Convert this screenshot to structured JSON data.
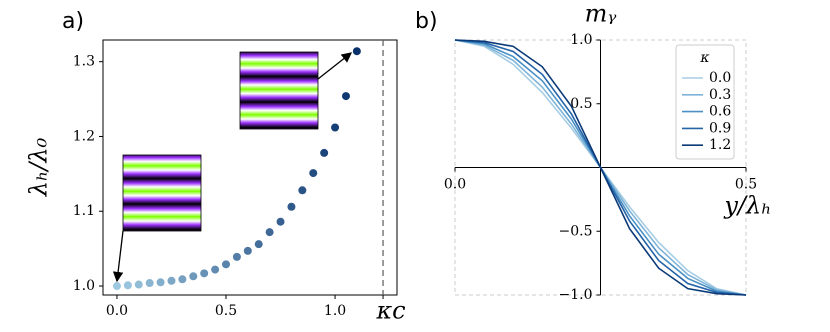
{
  "chart_data": [
    {
      "type": "scatter",
      "panel_label": "a)",
      "ylabel": "λₕ/λ₀",
      "x": [
        0,
        0.05,
        0.1,
        0.15,
        0.2,
        0.25,
        0.3,
        0.35,
        0.4,
        0.45,
        0.5,
        0.55,
        0.6,
        0.65,
        0.7,
        0.75,
        0.8,
        0.85,
        0.9,
        0.95,
        1.0,
        1.05,
        1.1
      ],
      "values": [
        1.0,
        1.001,
        1.002,
        1.004,
        1.005,
        1.007,
        1.009,
        1.013,
        1.017,
        1.022,
        1.029,
        1.039,
        1.047,
        1.056,
        1.072,
        1.086,
        1.106,
        1.128,
        1.151,
        1.178,
        1.212,
        1.254,
        1.314
      ],
      "color_range": [
        "#9ecae1",
        "#08306b"
      ],
      "xlim": [
        -0.064,
        1.284
      ],
      "ylim": [
        0.988,
        1.329
      ],
      "xticks": [
        {
          "value": 0,
          "label": "0.0"
        },
        0.5,
        {
          "value": 1,
          "label": "1.0"
        }
      ],
      "yticks": [
        {
          "value": 1,
          "label": "1.0"
        },
        1.1,
        1.2,
        1.3
      ],
      "critical": {
        "value": 1.22,
        "label": "κc"
      }
    },
    {
      "type": "line",
      "panel_label": "b)",
      "title": "mᵧ",
      "xlabel": "y/λₕ",
      "legend_title": "κ",
      "legend": "upper right",
      "x": [
        0,
        0.05,
        0.1,
        0.15,
        0.2,
        0.25,
        0.3,
        0.35,
        0.4,
        0.45,
        0.5
      ],
      "series": [
        {
          "name": "0.0",
          "color": "#a6cde3",
          "values": [
            1,
            0.951,
            0.809,
            0.588,
            0.309,
            0,
            -0.309,
            -0.588,
            -0.809,
            -0.951,
            -1
          ]
        },
        {
          "name": "0.3",
          "color": "#7fb4d9",
          "values": [
            1,
            0.96,
            0.84,
            0.63,
            0.34,
            0,
            -0.34,
            -0.63,
            -0.84,
            -0.96,
            -1
          ]
        },
        {
          "name": "0.6",
          "color": "#4a90c4",
          "values": [
            1,
            0.97,
            0.87,
            0.68,
            0.38,
            0,
            -0.38,
            -0.68,
            -0.87,
            -0.97,
            -1
          ]
        },
        {
          "name": "0.9",
          "color": "#2463a8",
          "values": [
            1,
            0.98,
            0.91,
            0.73,
            0.42,
            0,
            -0.42,
            -0.73,
            -0.91,
            -0.98,
            -1
          ]
        },
        {
          "name": "1.2",
          "color": "#0b3a78",
          "values": [
            1,
            0.99,
            0.95,
            0.79,
            0.48,
            0,
            -0.48,
            -0.79,
            -0.95,
            -0.99,
            -1
          ]
        }
      ],
      "xlim": [
        0,
        0.5
      ],
      "ylim": [
        -1,
        1
      ],
      "xticks": [
        {
          "value": 0,
          "label": "0.0"
        },
        0.5
      ],
      "yticks": [
        {
          "value": -1,
          "label": "−1.0"
        },
        {
          "value": -0.5,
          "label": "−0.5"
        },
        0.5,
        {
          "value": 1,
          "label": "1.0"
        }
      ]
    }
  ]
}
